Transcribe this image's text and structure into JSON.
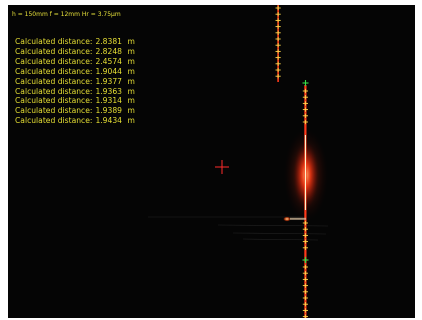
{
  "window": {
    "header_text": "h = 150mm f = 12mm Hr = 3.75μm"
  },
  "readings": {
    "label": "Calculated distance:",
    "unit": "m",
    "values": [
      "2.8381",
      "2.8248",
      "2.4574",
      "1.9044",
      "1.9377",
      "1.9363",
      "1.9314",
      "1.9389",
      "1.9434"
    ]
  },
  "icons": {
    "crosshair": "crosshair-icon",
    "marker": "plus-marker-icon"
  },
  "colors": {
    "background": "#050505",
    "text": "#e6df34",
    "laser": "#ff3a1a",
    "laser_core": "#fff2c8",
    "marker": "#ffd84a",
    "endpoint": "#38e04a",
    "crosshair": "#ff2a2a"
  }
}
